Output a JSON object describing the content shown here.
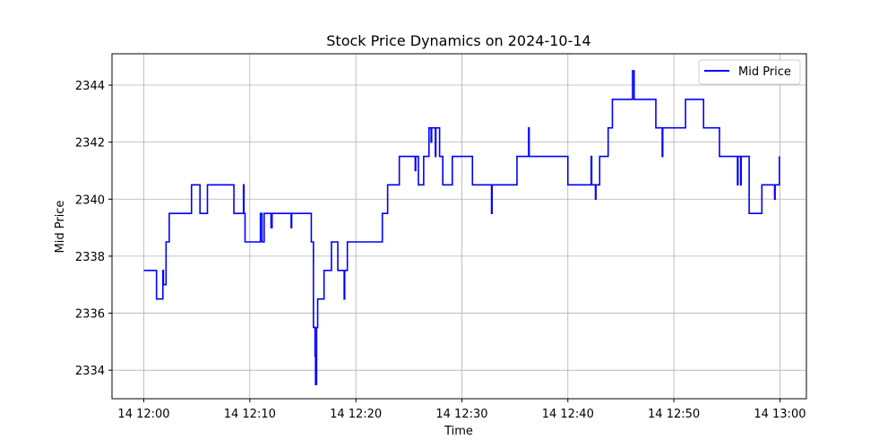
{
  "chart_data": {
    "type": "line",
    "title": "Stock Price Dynamics on 2024-10-14",
    "xlabel": "Time",
    "ylabel": "Mid Price",
    "grid": true,
    "legend_position": "top-right",
    "x_tick_labels": [
      "14 12:00",
      "14 12:10",
      "14 12:20",
      "14 12:30",
      "14 12:40",
      "14 12:50",
      "14 13:00"
    ],
    "x_ticks_minutes": [
      0,
      10,
      20,
      30,
      40,
      50,
      60
    ],
    "y_ticks": [
      2334,
      2336,
      2338,
      2340,
      2342,
      2344
    ],
    "xlim_minutes": [
      -3,
      62.5
    ],
    "ylim": [
      2333,
      2345.1
    ],
    "x_axis_start_time": "12:00",
    "series": [
      {
        "name": "Mid Price",
        "color": "#0000ff",
        "drawstyle": "steps-post",
        "x_minutes": [
          0,
          1.2,
          1.8,
          1.85,
          2.1,
          2.3,
          2.4,
          2.7,
          4.5,
          5.3,
          5.4,
          6.0,
          8.5,
          9.4,
          9.45,
          9.55,
          9.6,
          11.0,
          11.15,
          11.35,
          11.45,
          11.55,
          11.65,
          11.75,
          12.0,
          12.1,
          13.9,
          13.95,
          15.8,
          16.0,
          16.15,
          16.2,
          16.3,
          16.4,
          16.6,
          17.0,
          17.7,
          17.8,
          18.3,
          18.9,
          18.95,
          19.2,
          22.5,
          23.0,
          24.1,
          25.6,
          25.65,
          25.9,
          26.4,
          26.9,
          27.1,
          27.15,
          27.5,
          27.55,
          27.9,
          28.2,
          29.1,
          31.0,
          32.8,
          32.85,
          35.2,
          36.3,
          36.35,
          40.0,
          42.2,
          42.25,
          42.6,
          42.65,
          43.0,
          43.8,
          44.2,
          46.1,
          46.25,
          48.3,
          48.9,
          48.95,
          51.1,
          52.8,
          54.3,
          55.0,
          56.0,
          56.05,
          56.3,
          56.35,
          57.1,
          57.15,
          58.0,
          58.2,
          58.3,
          59.5,
          59.55,
          59.95
        ],
        "values": [
          2337.5,
          2336.5,
          2337.5,
          2337.0,
          2338.5,
          2338.5,
          2339.5,
          2339.5,
          2340.5,
          2339.5,
          2339.5,
          2340.5,
          2339.5,
          2340.5,
          2339.5,
          2338.5,
          2338.5,
          2339.5,
          2338.5,
          2339.5,
          2339.5,
          2339.5,
          2339.5,
          2339.5,
          2339.0,
          2339.5,
          2339.0,
          2339.5,
          2338.5,
          2335.5,
          2334.5,
          2333.5,
          2335.5,
          2336.5,
          2336.5,
          2337.5,
          2338.5,
          2338.5,
          2337.5,
          2336.5,
          2337.5,
          2338.5,
          2339.5,
          2340.5,
          2341.5,
          2341.0,
          2341.5,
          2340.5,
          2341.5,
          2342.5,
          2342.0,
          2342.5,
          2341.5,
          2342.5,
          2341.5,
          2340.5,
          2341.5,
          2340.5,
          2339.5,
          2340.5,
          2341.5,
          2342.5,
          2341.5,
          2340.5,
          2341.5,
          2340.5,
          2340.0,
          2340.5,
          2341.5,
          2342.5,
          2343.5,
          2344.5,
          2343.5,
          2342.5,
          2341.5,
          2342.5,
          2343.5,
          2342.5,
          2341.5,
          2341.5,
          2340.5,
          2341.5,
          2340.5,
          2341.5,
          2339.5,
          2339.5,
          2339.5,
          2339.5,
          2340.5,
          2340.0,
          2340.5,
          2341.5
        ]
      }
    ]
  }
}
